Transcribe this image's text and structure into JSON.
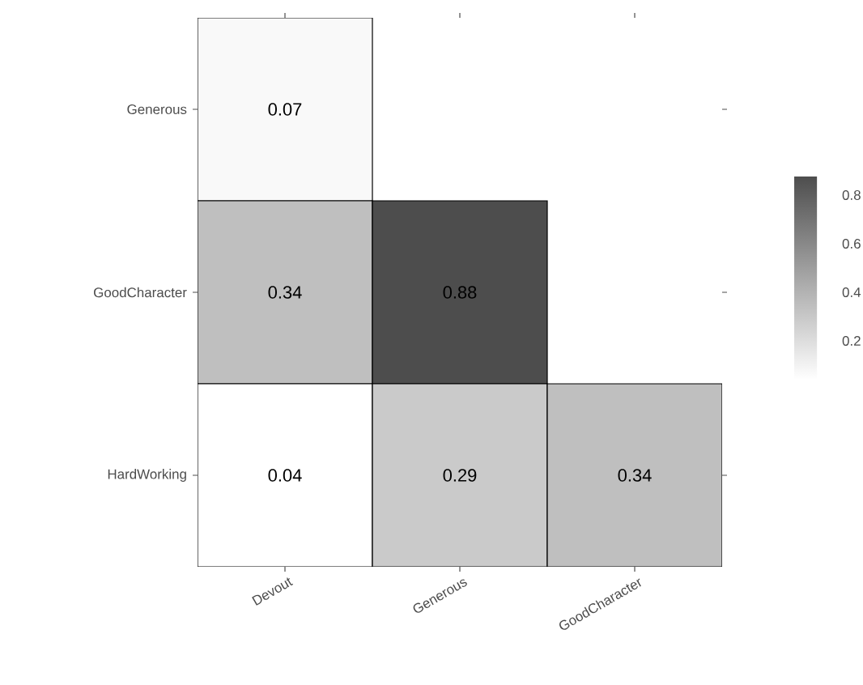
{
  "chart_data": {
    "type": "heatmap",
    "categories": [
      "Devout",
      "Generous",
      "GoodCharacter"
    ],
    "y_categories": [
      "Generous",
      "GoodCharacter",
      "HardWorking"
    ],
    "cells": [
      [
        0.07,
        null,
        null
      ],
      [
        0.34,
        0.88,
        null
      ],
      [
        0.04,
        0.29,
        0.34
      ]
    ],
    "data_labels": true,
    "clim": [
      0.04,
      0.88
    ],
    "cticks": [
      0.2,
      0.4,
      0.6,
      0.8
    ]
  }
}
